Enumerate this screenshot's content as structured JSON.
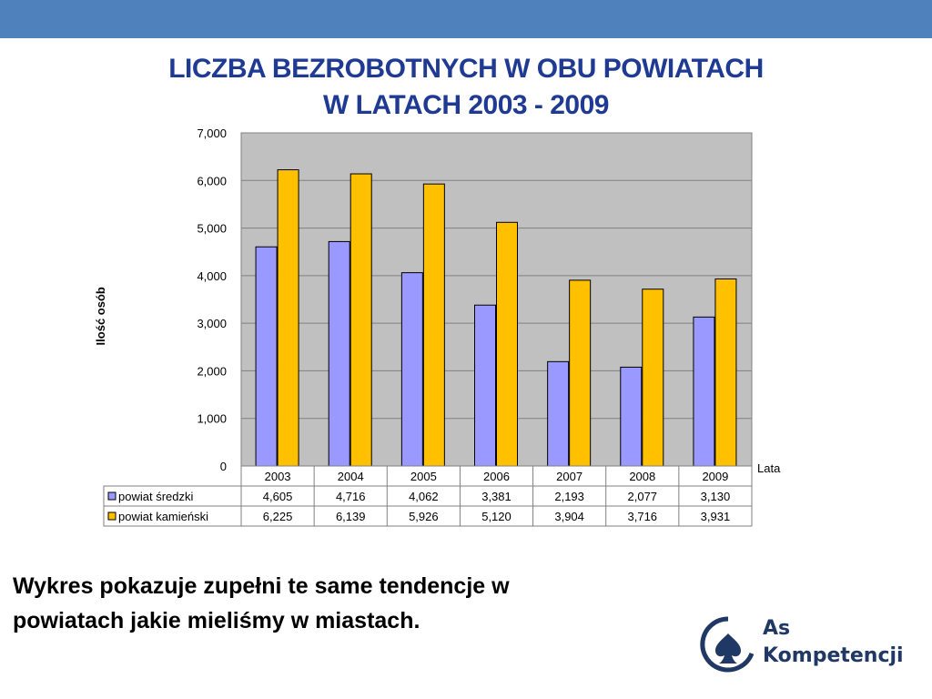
{
  "header": {
    "title_line1": "LICZBA BEZROBOTNYCH  W OBU POWIATACH",
    "title_line2": "W LATACH 2003 - 2009"
  },
  "caption": {
    "line1": "Wykres pokazuje zupełni te same tendencje w",
    "line2": "powiatach jakie mieliśmy w miastach."
  },
  "logo": {
    "line1": "As",
    "line2": "Kompetencji",
    "icon": "spade-icon"
  },
  "chart_data": {
    "type": "bar",
    "categories": [
      "2003",
      "2004",
      "2005",
      "2006",
      "2007",
      "2008",
      "2009"
    ],
    "series": [
      {
        "name": "powiat średzki",
        "values": [
          4605,
          4716,
          4062,
          3381,
          2193,
          2077,
          3130
        ],
        "color": "#9999ff",
        "labels": [
          "4,605",
          "4,716",
          "4,062",
          "3,381",
          "2,193",
          "2,077",
          "3,130"
        ]
      },
      {
        "name": "powiat kamieński",
        "values": [
          6225,
          6139,
          5926,
          5120,
          3904,
          3716,
          3931
        ],
        "color": "#ffc000",
        "labels": [
          "6,225",
          "6,139",
          "5,926",
          "5,120",
          "3,904",
          "3,716",
          "3,931"
        ]
      }
    ],
    "ylabel": "Ilość osób",
    "xlabel": "Lata",
    "ylim": [
      0,
      7000
    ],
    "yticks": [
      0,
      1000,
      2000,
      3000,
      4000,
      5000,
      6000,
      7000
    ],
    "ytick_labels": [
      "0",
      "1,000",
      "2,000",
      "3,000",
      "4,000",
      "5,000",
      "6,000",
      "7,000"
    ],
    "grid": true,
    "legend": "data-table",
    "plot_background": "#c0c0c0"
  }
}
